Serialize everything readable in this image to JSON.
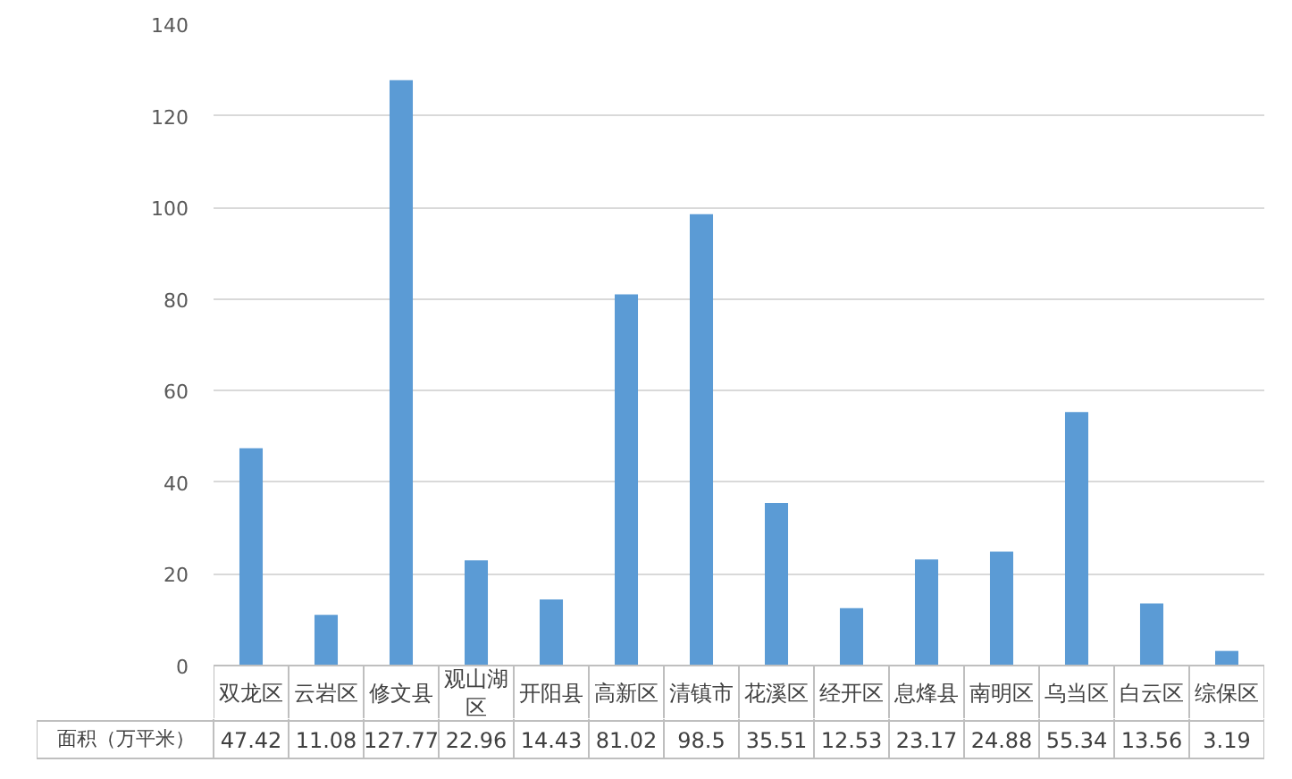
{
  "chart_data": {
    "type": "bar",
    "categories": [
      "双龙区",
      "云岩区",
      "修文县",
      "观山湖区",
      "开阳县",
      "高新区",
      "清镇市",
      "花溪区",
      "经开区",
      "息烽县",
      "南明区",
      "乌当区",
      "白云区",
      "综保区"
    ],
    "series": [
      {
        "name": "面积（万平米）",
        "color": "#5b9bd5",
        "values": [
          47.42,
          11.08,
          127.77,
          22.96,
          14.43,
          81.02,
          98.5,
          35.51,
          12.53,
          23.17,
          24.88,
          55.34,
          13.56,
          3.19
        ]
      }
    ],
    "ylim": [
      0,
      140
    ],
    "yticks": [
      0,
      20,
      40,
      60,
      80,
      100,
      120,
      140
    ],
    "grid": "y",
    "legend": "bottom left",
    "data_labels": true
  }
}
